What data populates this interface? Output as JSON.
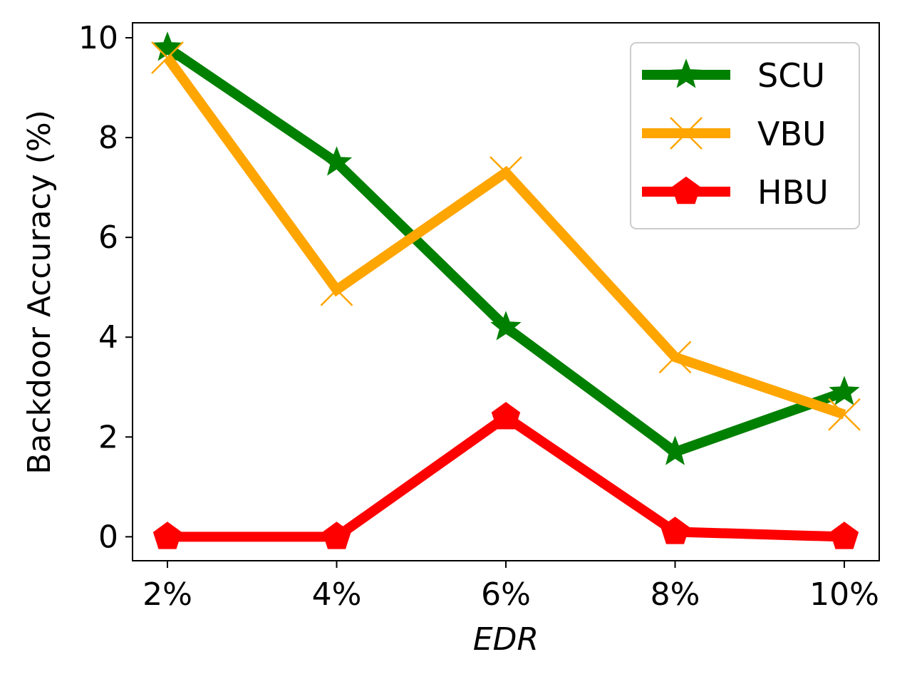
{
  "chart_data": {
    "type": "line",
    "title": "",
    "xlabel": "EDR",
    "ylabel": "Backdoor Accuracy (%)",
    "categories": [
      "2%",
      "4%",
      "6%",
      "8%",
      "10%"
    ],
    "y_ticks": [
      "0",
      "2",
      "4",
      "6",
      "8",
      "10"
    ],
    "ylim": [
      -0.48,
      10.3
    ],
    "grid": false,
    "legend_position": "top-right",
    "series": [
      {
        "name": "SCU",
        "marker": "star",
        "color": "#008000",
        "values": [
          9.8,
          7.5,
          4.2,
          1.7,
          2.9
        ]
      },
      {
        "name": "VBU",
        "marker": "x",
        "color": "#FFA500",
        "values": [
          9.6,
          4.95,
          7.3,
          3.6,
          2.45
        ]
      },
      {
        "name": "HBU",
        "marker": "pentagon",
        "color": "#FF0000",
        "values": [
          0.0,
          0.0,
          2.4,
          0.1,
          0.0
        ]
      }
    ]
  }
}
